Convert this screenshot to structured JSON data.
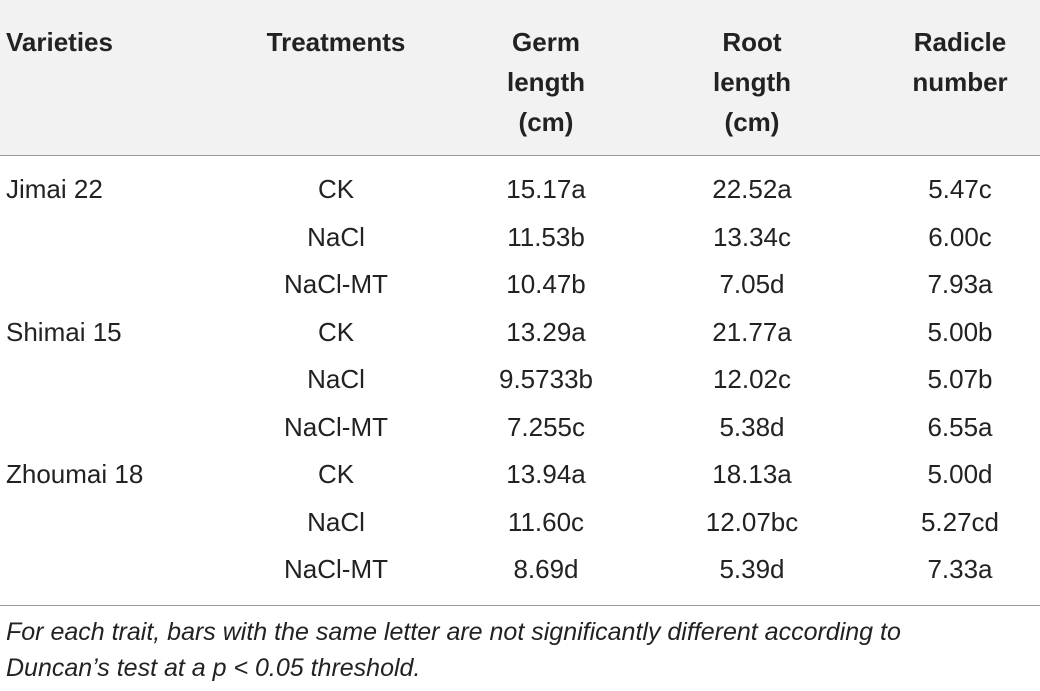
{
  "table": {
    "header": [
      "Varieties",
      "Treatments",
      "Germ length (cm)",
      "Root length (cm)",
      "Radicle number"
    ],
    "header_lines": [
      [
        "Varieties"
      ],
      [
        "Treatments"
      ],
      [
        "Germ",
        "length",
        "(cm)"
      ],
      [
        "Root",
        "length",
        "(cm)"
      ],
      [
        "Radicle",
        "number"
      ]
    ],
    "rows": [
      [
        "Jimai 22",
        "CK",
        "15.17a",
        "22.52a",
        "5.47c"
      ],
      [
        "",
        "NaCl",
        "11.53b",
        "13.34c",
        "6.00c"
      ],
      [
        "",
        "NaCl-MT",
        "10.47b",
        "7.05d",
        "7.93a"
      ],
      [
        "Shimai 15",
        "CK",
        "13.29a",
        "21.77a",
        "5.00b"
      ],
      [
        "",
        "NaCl",
        "9.5733b",
        "12.02c",
        "5.07b"
      ],
      [
        "",
        "NaCl-MT",
        "7.255c",
        "5.38d",
        "6.55a"
      ],
      [
        "Zhoumai 18",
        "CK",
        "13.94a",
        "18.13a",
        "5.00d"
      ],
      [
        "",
        "NaCl",
        "11.60c",
        "12.07bc",
        "5.27cd"
      ],
      [
        "",
        "NaCl-MT",
        "8.69d",
        "5.39d",
        "7.33a"
      ]
    ],
    "footnote_lines": [
      "For each trait, bars with the same letter are not significantly different according to",
      "Duncan’s test at a p < 0.05 threshold."
    ]
  }
}
